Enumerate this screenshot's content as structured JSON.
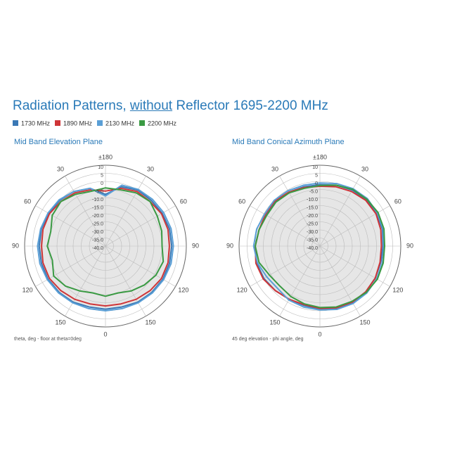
{
  "title": [
    "Radiation Patterns, ",
    "without",
    " Reflector 1695-2200 MHz"
  ],
  "chart_data": [
    {
      "type": "polar",
      "title": "Mid Band Elevation Plane",
      "note": "theta, deg - floor at theta=0deg",
      "rlim": [
        -40,
        10
      ],
      "rticks": [
        10,
        5,
        0,
        {
          "value": -5,
          "label": "-5.0"
        },
        {
          "value": -10,
          "label": "-10.0"
        },
        {
          "value": -15,
          "label": "-15.0"
        },
        {
          "value": -20,
          "label": "-20.0"
        },
        {
          "value": -25,
          "label": "-25.0"
        },
        {
          "value": -30,
          "label": "-30.0"
        },
        {
          "value": -35,
          "label": "-35.0"
        },
        {
          "value": -40,
          "label": "-40.0"
        }
      ],
      "thetaticks": [
        {
          "value": 0,
          "label": "±180"
        },
        {
          "value": 30,
          "label": "30"
        },
        {
          "value": 60,
          "label": "60"
        },
        {
          "value": 90,
          "label": "90"
        },
        {
          "value": 120,
          "label": "120"
        },
        {
          "value": 150,
          "label": "150"
        },
        {
          "value": 180,
          "label": "0"
        },
        {
          "value": 210,
          "label": "150"
        },
        {
          "value": 240,
          "label": "120"
        },
        {
          "value": 270,
          "label": "90"
        },
        {
          "value": 300,
          "label": "60"
        },
        {
          "value": 330,
          "label": "30"
        }
      ],
      "theta": [
        0,
        15,
        30,
        45,
        60,
        75,
        90,
        105,
        120,
        135,
        150,
        165,
        180,
        195,
        210,
        225,
        240,
        255,
        270,
        285,
        300,
        315,
        330,
        345
      ],
      "series": [
        {
          "name": "1730 MHz",
          "color": "#3a78b5",
          "values": [
            -8,
            -2,
            0,
            0,
            0.5,
            1,
            1,
            1,
            1,
            0.5,
            0,
            -1,
            -1,
            -1,
            0,
            0.5,
            1,
            1,
            1,
            1,
            0.5,
            0,
            -1,
            -3
          ]
        },
        {
          "name": "1890 MHz",
          "color": "#cf3538",
          "values": [
            -6,
            -3,
            -1,
            -1,
            0,
            0,
            -0.5,
            0,
            0,
            -1,
            -2,
            -3,
            -3,
            -3,
            -2,
            -1,
            0,
            0,
            -0.5,
            0,
            0,
            -1,
            -2,
            -4
          ]
        },
        {
          "name": "2130 MHz",
          "color": "#5a9fd6",
          "values": [
            -9,
            -1,
            0.5,
            1,
            1.5,
            2,
            2,
            2,
            1.5,
            1,
            0.5,
            0,
            0,
            0,
            0.5,
            1,
            1.5,
            2,
            2,
            1.5,
            1,
            0.5,
            -1,
            -3
          ]
        },
        {
          "name": "2200 MHz",
          "color": "#3a9a43",
          "values": [
            -4,
            -4,
            -2,
            -1,
            -3,
            -4,
            -5,
            -3,
            -4,
            -6,
            -8,
            -10,
            -9,
            -10,
            -8,
            -5,
            -3,
            -6,
            -4,
            -5,
            -2,
            -1,
            -3,
            -5
          ]
        }
      ]
    },
    {
      "type": "polar",
      "title": "Mid Band Conical Azimuth Plane",
      "note": "45 deg elevation - phi angle, deg",
      "rlim": [
        -40,
        10
      ],
      "rticks": [
        10,
        5,
        0,
        {
          "value": -5,
          "label": "-5.0"
        },
        {
          "value": -10,
          "label": "-10.0"
        },
        {
          "value": -15,
          "label": "-15.0"
        },
        {
          "value": -20,
          "label": "-20.0"
        },
        {
          "value": -25,
          "label": "-25.0"
        },
        {
          "value": -30,
          "label": "-30.0"
        },
        {
          "value": -35,
          "label": "-35.0"
        },
        {
          "value": -40,
          "label": "-40.0"
        }
      ],
      "thetaticks": [
        {
          "value": 0,
          "label": "±180"
        },
        {
          "value": 30,
          "label": "30"
        },
        {
          "value": 60,
          "label": "60"
        },
        {
          "value": 90,
          "label": "90"
        },
        {
          "value": 120,
          "label": "120"
        },
        {
          "value": 150,
          "label": "150"
        },
        {
          "value": 180,
          "label": "0"
        },
        {
          "value": 210,
          "label": "150"
        },
        {
          "value": 240,
          "label": "120"
        },
        {
          "value": 270,
          "label": "90"
        },
        {
          "value": 300,
          "label": "60"
        },
        {
          "value": 330,
          "label": "30"
        }
      ],
      "theta": [
        0,
        15,
        30,
        45,
        60,
        75,
        90,
        105,
        120,
        135,
        150,
        165,
        180,
        195,
        210,
        225,
        240,
        255,
        270,
        285,
        300,
        315,
        330,
        345
      ],
      "series": [
        {
          "color": "#3a78b5",
          "values": [
            -2,
            -1,
            0,
            0.5,
            0.5,
            0,
            -1,
            -1,
            -0.5,
            0,
            0.5,
            0,
            -1,
            -2,
            -2,
            -1,
            0,
            0.5,
            0,
            -1,
            -1.5,
            -1,
            -1.5,
            -2
          ]
        },
        {
          "color": "#cf3538",
          "values": [
            -3,
            -2,
            -1,
            0,
            0,
            -1,
            -2,
            -1.5,
            -0.5,
            0,
            0,
            -0.5,
            -1.5,
            -2.5,
            -2,
            -1,
            0.5,
            1,
            0,
            -1,
            -1,
            -0.5,
            -1.5,
            -2.5
          ]
        },
        {
          "color": "#5a9fd6",
          "values": [
            -1,
            0,
            1,
            1.5,
            1,
            0.5,
            -0.5,
            0,
            0.5,
            1,
            1,
            0.5,
            -0.5,
            -1,
            -1.5,
            -3,
            -2,
            0,
            1,
            0.5,
            -0.5,
            0,
            -0.5,
            -1
          ]
        },
        {
          "color": "#3a9a43",
          "values": [
            -2.5,
            -1,
            0.5,
            1,
            1.5,
            1,
            0,
            0.5,
            1,
            0.5,
            -0.5,
            -1,
            -2,
            -3,
            -4,
            -5,
            -4,
            -1,
            0,
            -1,
            -2,
            -1.5,
            -2,
            -3
          ]
        }
      ]
    }
  ]
}
